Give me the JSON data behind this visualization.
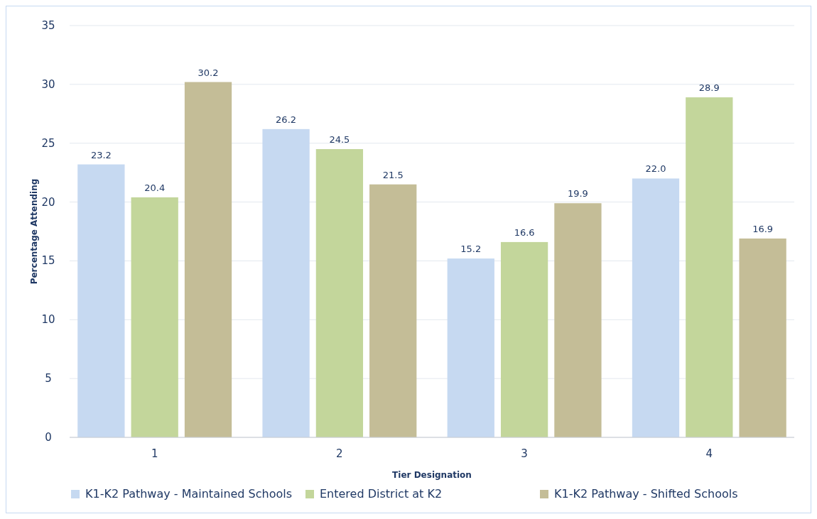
{
  "chart_data": {
    "type": "bar",
    "xlabel": "Tier Designation",
    "ylabel": "Percentage Attending",
    "categories": [
      "1",
      "2",
      "3",
      "4"
    ],
    "series": [
      {
        "name": "K1-K2 Pathway - Maintained Schools",
        "color": "#c6d9f1",
        "values": [
          23.2,
          26.2,
          15.2,
          22.0
        ],
        "value_labels": [
          "23.2",
          "26.2",
          "15.2",
          "22.0"
        ]
      },
      {
        "name": "Entered District at K2",
        "color": "#c3d69b",
        "values": [
          20.4,
          24.5,
          16.6,
          28.9
        ],
        "value_labels": [
          "20.4",
          "24.5",
          "16.6",
          "28.9"
        ]
      },
      {
        "name": "K1-K2 Pathway - Shifted Schools",
        "color": "#c4bd97",
        "values": [
          30.2,
          21.5,
          19.9,
          16.9
        ],
        "value_labels": [
          "30.2",
          "21.5",
          "19.9",
          "16.9"
        ]
      }
    ],
    "ylim": [
      0,
      35
    ],
    "yticks": [
      0,
      5,
      10,
      15,
      20,
      25,
      30,
      35
    ],
    "grid": "y",
    "legend": "bottom"
  }
}
